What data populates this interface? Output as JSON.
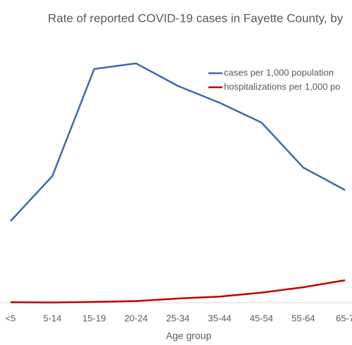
{
  "chart_data": {
    "type": "line",
    "title": "Rate of reported COVID-19 cases in Fayette County, by",
    "x_label": "Age group",
    "categories": [
      "<5",
      "5-14",
      "15-19",
      "20-24",
      "25-34",
      "35-44",
      "45-54",
      "55-64",
      "65-7"
    ],
    "series": [
      {
        "name": "cases per 1,000 population",
        "color": "#4068b0",
        "values": [
          29,
          45,
          83,
          85,
          77,
          71,
          64,
          48,
          40
        ]
      },
      {
        "name": "hospitalizations per 1,000 po",
        "color": "#c00000",
        "values": [
          0.2,
          0.1,
          0.3,
          0.6,
          1.5,
          2.2,
          3.6,
          5.5,
          8
        ]
      }
    ],
    "ylim": [
      0,
      100
    ],
    "legend": "upper right"
  }
}
